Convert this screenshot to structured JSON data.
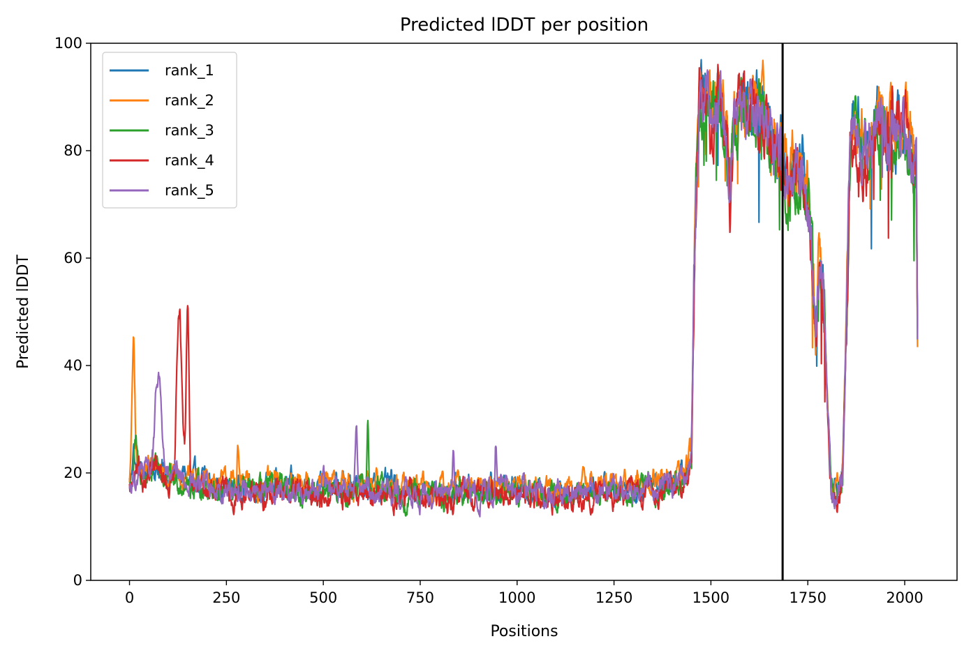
{
  "chart_data": {
    "type": "line",
    "title": "Predicted lDDT per position",
    "xlabel": "Positions",
    "ylabel": "Predicted lDDT",
    "xlim": [
      -100,
      2135
    ],
    "ylim": [
      0,
      100
    ],
    "xticks": [
      0,
      250,
      500,
      750,
      1000,
      1250,
      1500,
      1750,
      2000
    ],
    "yticks": [
      0,
      20,
      40,
      60,
      80,
      100
    ],
    "grid": false,
    "legend_position": "top-left",
    "vline": {
      "x": 1685,
      "color": "#000000"
    },
    "series": [
      {
        "name": "rank_1",
        "color": "#1f77b4"
      },
      {
        "name": "rank_2",
        "color": "#ff7f0e"
      },
      {
        "name": "rank_3",
        "color": "#2ca02c"
      },
      {
        "name": "rank_4",
        "color": "#d62728"
      },
      {
        "name": "rank_5",
        "color": "#9467bd"
      }
    ],
    "profile": {
      "x": [
        0,
        5,
        10,
        20,
        40,
        60,
        70,
        80,
        100,
        110,
        120,
        130,
        145,
        150,
        160,
        180,
        200,
        250,
        300,
        400,
        500,
        580,
        600,
        620,
        700,
        800,
        900,
        950,
        1000,
        1100,
        1200,
        1300,
        1400,
        1440,
        1450,
        1460,
        1470,
        1480,
        1490,
        1500,
        1520,
        1540,
        1550,
        1560,
        1580,
        1600,
        1620,
        1650,
        1670,
        1680,
        1685,
        1690,
        1700,
        1720,
        1740,
        1750,
        1760,
        1770,
        1780,
        1790,
        1800,
        1810,
        1820,
        1830,
        1840,
        1850,
        1860,
        1880,
        1900,
        1920,
        1940,
        1960,
        1980,
        2000,
        2010,
        2020,
        2030,
        2033
      ],
      "y": [
        18,
        18,
        19,
        20,
        20,
        21,
        21,
        20,
        19,
        19,
        19,
        19,
        19,
        18,
        18,
        18,
        18,
        17,
        17,
        17,
        17,
        17,
        17,
        17,
        17,
        16,
        17,
        17,
        17,
        16,
        17,
        17,
        18,
        20,
        24,
        70,
        90,
        88,
        92,
        86,
        90,
        84,
        72,
        88,
        90,
        86,
        88,
        84,
        78,
        80,
        77,
        75,
        72,
        76,
        74,
        72,
        62,
        42,
        60,
        52,
        35,
        18,
        16,
        16,
        20,
        50,
        82,
        84,
        80,
        84,
        86,
        82,
        84,
        86,
        82,
        80,
        76,
        45
      ]
    }
  }
}
